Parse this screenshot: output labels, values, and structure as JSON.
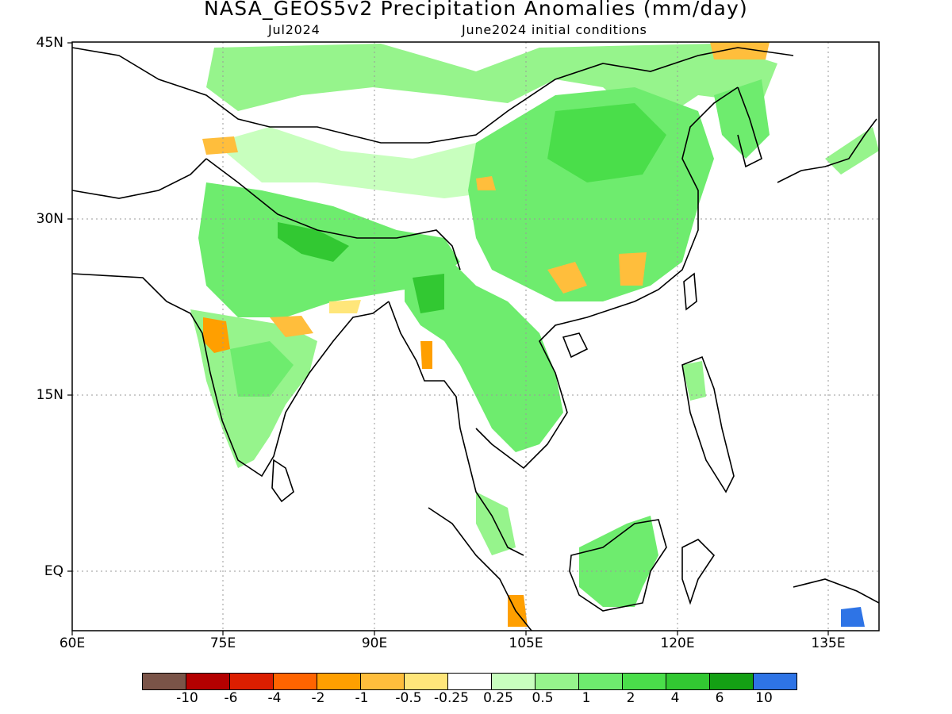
{
  "header": {
    "title": "NASA_GEOS5v2 Precipitation Anomalies (mm/day)",
    "subtitle_left": "Jul2024",
    "subtitle_right": "June2024 initial conditions"
  },
  "map": {
    "lat_labels": [
      "45N",
      "30N",
      "15N",
      "EQ"
    ],
    "lon_labels": [
      "60E",
      "75E",
      "90E",
      "105E",
      "120E",
      "135E"
    ],
    "lon_range": [
      60,
      140
    ],
    "lat_range": [
      -5,
      45
    ]
  },
  "colorbar": {
    "colors": [
      "#7a5448",
      "#b40000",
      "#dc1e00",
      "#ff6400",
      "#ff9f00",
      "#ffbe3c",
      "#ffe67a",
      "#ffffff",
      "#c8ffbe",
      "#96f48c",
      "#6eec6e",
      "#4ade4a",
      "#32c832",
      "#14a014",
      "#2e74e6"
    ],
    "labels": [
      "-10",
      "-6",
      "-4",
      "-2",
      "-1",
      "-0.5",
      "-0.25",
      "0.25",
      "0.5",
      "1",
      "2",
      "4",
      "6",
      "10"
    ]
  },
  "anomaly_regions": [
    {
      "name": "north-india-nepal",
      "color": "#6eec6e"
    },
    {
      "name": "himalaya-core",
      "color": "#32c832"
    },
    {
      "name": "central-india",
      "color": "#96f48c"
    },
    {
      "name": "east-china",
      "color": "#6eec6e"
    },
    {
      "name": "southeast-asia",
      "color": "#6eec6e"
    },
    {
      "name": "borneo",
      "color": "#6eec6e"
    },
    {
      "name": "mongolia-north",
      "color": "#96f48c"
    },
    {
      "name": "west-india-dry",
      "color": "#ff9f00"
    },
    {
      "name": "south-china-dry",
      "color": "#ffbe3c"
    },
    {
      "name": "sumatra-dry",
      "color": "#ff9f00"
    },
    {
      "name": "new-guinea-wet",
      "color": "#2e74e6"
    }
  ]
}
